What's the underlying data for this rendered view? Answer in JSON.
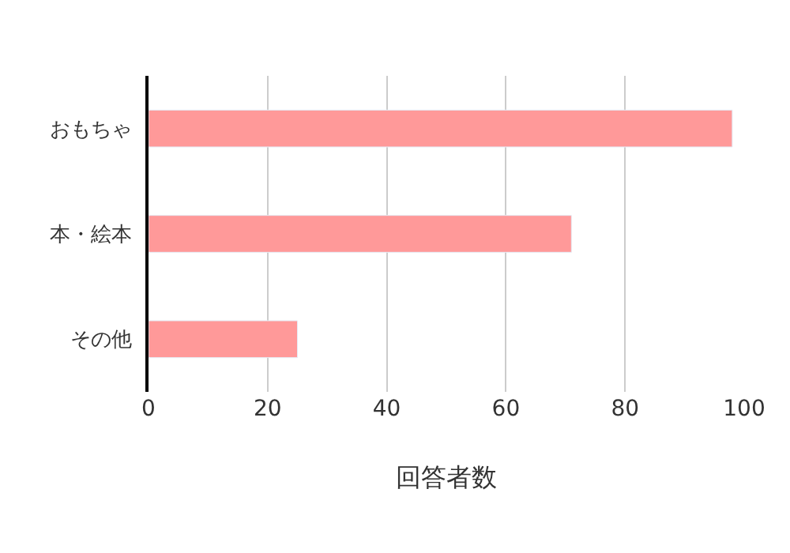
{
  "chart_data": {
    "type": "bar",
    "orientation": "horizontal",
    "categories": [
      "おもちゃ",
      "本・絵本",
      "その他"
    ],
    "values": [
      98,
      71,
      25
    ],
    "color": "#ff9999",
    "xlabel": "回答者数",
    "xlim": [
      0,
      100
    ],
    "xticks": [
      0,
      20,
      40,
      60,
      80,
      100
    ],
    "grid": "x",
    "legend": false
  }
}
